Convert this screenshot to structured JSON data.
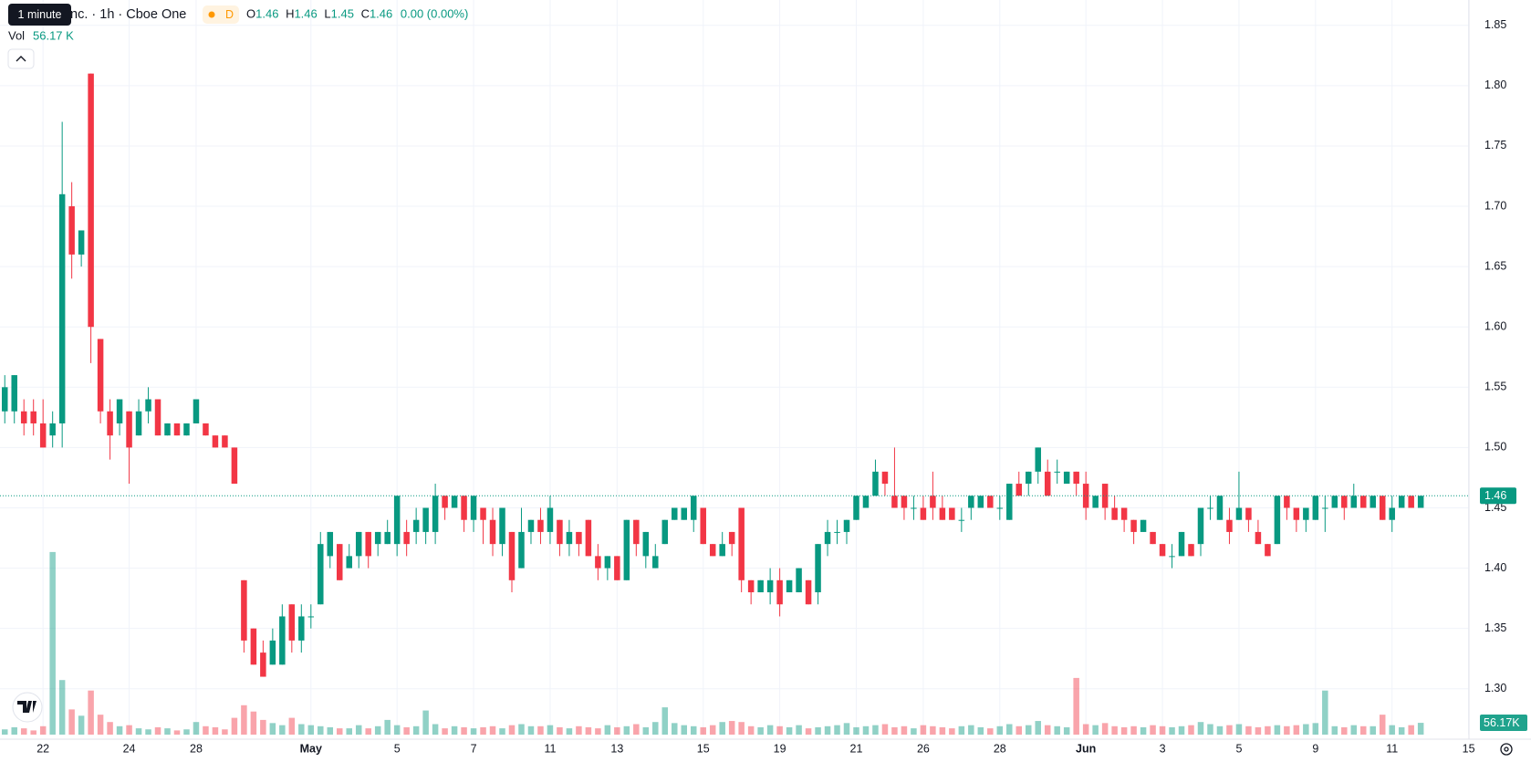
{
  "header": {
    "tooltip": "1 minute",
    "title": "Inc. · 1h · Cboe One",
    "badge": "D",
    "ohlc_labels": [
      "O",
      "H",
      "L",
      "C"
    ],
    "ohlc": [
      1.46,
      1.46,
      1.45,
      1.46
    ],
    "change": "0.00 (0.00%)",
    "volume_label": "Vol",
    "volume": "56.17 K"
  },
  "chart_data": {
    "type": "candlestick",
    "up_color": "#089981",
    "down_color": "#f23645",
    "grid": true,
    "ylim": [
      1.262,
      1.871
    ],
    "yticks": [
      {
        "value": 1.3,
        "label": "1.30"
      },
      1.35,
      {
        "value": 1.4,
        "label": "1.40"
      },
      1.45,
      {
        "value": 1.5,
        "label": "1.50"
      },
      1.55,
      {
        "value": 1.6,
        "label": "1.60"
      },
      1.65,
      {
        "value": 1.7,
        "label": "1.70"
      },
      1.75,
      {
        "value": 1.8,
        "label": "1.80"
      },
      1.85
    ],
    "y2lim": [
      0,
      3500
    ],
    "last_price": 1.46,
    "last_volume_label": "56.17K",
    "categories": [
      null,
      null,
      null,
      null,
      "22",
      null,
      null,
      null,
      null,
      null,
      null,
      null,
      null,
      "24",
      null,
      null,
      null,
      null,
      null,
      null,
      "28",
      null,
      null,
      null,
      null,
      null,
      null,
      null,
      null,
      null,
      null,
      null,
      "May",
      null,
      null,
      null,
      null,
      null,
      null,
      null,
      null,
      "5",
      null,
      null,
      null,
      null,
      null,
      null,
      null,
      "7",
      null,
      null,
      null,
      null,
      null,
      null,
      null,
      "11",
      null,
      null,
      null,
      null,
      null,
      null,
      "13",
      null,
      null,
      null,
      null,
      null,
      null,
      null,
      null,
      "15",
      null,
      null,
      null,
      null,
      null,
      null,
      null,
      "19",
      null,
      null,
      null,
      null,
      null,
      null,
      null,
      "21",
      null,
      null,
      null,
      null,
      null,
      null,
      "26",
      null,
      null,
      null,
      null,
      null,
      null,
      null,
      "28",
      null,
      null,
      null,
      null,
      null,
      null,
      null,
      null,
      "Jun",
      null,
      null,
      null,
      null,
      null,
      null,
      null,
      "3",
      null,
      null,
      null,
      null,
      null,
      null,
      null,
      "5",
      null,
      null,
      null,
      null,
      null,
      null,
      null,
      "9",
      null,
      null,
      null,
      null,
      null,
      null,
      null,
      "11",
      null,
      null,
      null,
      null,
      null,
      null,
      null,
      "15"
    ],
    "open": [
      1.53,
      1.53,
      1.53,
      1.53,
      1.52,
      1.51,
      1.52,
      1.7,
      1.66,
      1.81,
      1.59,
      1.53,
      1.52,
      1.53,
      1.51,
      1.53,
      1.54,
      1.51,
      1.52,
      1.51,
      1.52,
      1.52,
      1.51,
      1.51,
      1.5,
      1.39,
      1.35,
      1.33,
      1.32,
      1.32,
      1.37,
      1.34,
      1.36,
      1.37,
      1.41,
      1.42,
      1.4,
      1.41,
      1.43,
      1.42,
      1.42,
      1.42,
      1.43,
      1.43,
      1.43,
      1.43,
      1.46,
      1.45,
      1.46,
      1.44,
      1.45,
      1.44,
      1.42,
      1.43,
      1.4,
      1.43,
      1.44,
      1.43,
      1.44,
      1.42,
      1.43,
      1.44,
      1.41,
      1.4,
      1.41,
      1.39,
      1.44,
      1.41,
      1.4,
      1.42,
      1.44,
      1.44,
      1.44,
      1.45,
      1.42,
      1.41,
      1.43,
      1.45,
      1.39,
      1.38,
      1.38,
      1.39,
      1.38,
      1.38,
      1.39,
      1.38,
      1.42,
      1.43,
      1.43,
      1.44,
      1.45,
      1.46,
      1.48,
      1.46,
      1.46,
      1.45,
      1.45,
      1.46,
      1.45,
      1.45,
      1.44,
      1.45,
      1.45,
      1.46,
      1.45,
      1.44,
      1.47,
      1.47,
      1.48,
      1.48,
      1.48,
      1.47,
      1.48,
      1.47,
      1.45,
      1.47,
      1.45,
      1.45,
      1.44,
      1.43,
      1.43,
      1.42,
      1.41,
      1.41,
      1.42,
      1.42,
      1.45,
      1.44,
      1.44,
      1.44,
      1.45,
      1.43,
      1.42,
      1.42,
      1.46,
      1.45,
      1.44,
      1.44,
      1.45,
      1.45,
      1.46,
      1.45,
      1.46,
      1.45,
      1.46,
      1.44,
      1.45,
      1.46,
      1.45,
      null,
      null,
      null,
      null,
      null
    ],
    "high": [
      1.56,
      1.56,
      1.54,
      1.54,
      1.54,
      1.53,
      1.77,
      1.72,
      1.68,
      1.81,
      1.59,
      1.54,
      1.54,
      1.53,
      1.54,
      1.55,
      1.54,
      1.52,
      1.52,
      1.52,
      1.54,
      1.52,
      1.51,
      1.51,
      1.5,
      1.39,
      1.35,
      1.34,
      1.35,
      1.37,
      1.37,
      1.37,
      1.37,
      1.43,
      1.43,
      1.42,
      1.42,
      1.43,
      1.43,
      1.43,
      1.44,
      1.46,
      1.44,
      1.45,
      1.45,
      1.47,
      1.46,
      1.46,
      1.46,
      1.46,
      1.45,
      1.45,
      1.45,
      1.43,
      1.45,
      1.44,
      1.45,
      1.46,
      1.44,
      1.44,
      1.43,
      1.44,
      1.42,
      1.41,
      1.41,
      1.44,
      1.44,
      1.43,
      1.42,
      1.44,
      1.45,
      1.45,
      1.46,
      1.45,
      1.42,
      1.43,
      1.43,
      1.45,
      1.39,
      1.39,
      1.4,
      1.4,
      1.39,
      1.4,
      1.39,
      1.42,
      1.44,
      1.44,
      1.44,
      1.46,
      1.46,
      1.49,
      1.48,
      1.5,
      1.46,
      1.46,
      1.46,
      1.48,
      1.46,
      1.45,
      1.45,
      1.46,
      1.46,
      1.46,
      1.46,
      1.47,
      1.48,
      1.48,
      1.5,
      1.49,
      1.49,
      1.48,
      1.48,
      1.48,
      1.46,
      1.47,
      1.46,
      1.45,
      1.44,
      1.44,
      1.43,
      1.42,
      1.42,
      1.43,
      1.42,
      1.45,
      1.46,
      1.46,
      1.45,
      1.48,
      1.45,
      1.44,
      1.42,
      1.46,
      1.46,
      1.45,
      1.45,
      1.46,
      1.46,
      1.46,
      1.46,
      1.47,
      1.46,
      1.46,
      1.46,
      1.46,
      1.46,
      1.46,
      1.46,
      null,
      null,
      null,
      null,
      null
    ],
    "low": [
      1.52,
      1.52,
      1.51,
      1.51,
      1.5,
      1.5,
      1.5,
      1.64,
      1.65,
      1.57,
      1.52,
      1.49,
      1.51,
      1.47,
      1.51,
      1.52,
      1.51,
      1.51,
      1.51,
      1.51,
      1.52,
      1.51,
      1.5,
      1.5,
      1.47,
      1.33,
      1.32,
      1.31,
      1.32,
      1.32,
      1.33,
      1.33,
      1.35,
      1.37,
      1.4,
      1.39,
      1.4,
      1.4,
      1.4,
      1.41,
      1.42,
      1.41,
      1.41,
      1.42,
      1.42,
      1.42,
      1.44,
      1.45,
      1.43,
      1.43,
      1.42,
      1.41,
      1.41,
      1.38,
      1.4,
      1.42,
      1.42,
      1.42,
      1.41,
      1.41,
      1.41,
      1.41,
      1.39,
      1.39,
      1.39,
      1.39,
      1.41,
      1.4,
      1.4,
      1.42,
      1.44,
      1.44,
      1.43,
      1.42,
      1.41,
      1.41,
      1.41,
      1.38,
      1.37,
      1.38,
      1.37,
      1.36,
      1.38,
      1.38,
      1.37,
      1.37,
      1.41,
      1.42,
      1.42,
      1.44,
      1.45,
      1.46,
      1.46,
      1.45,
      1.44,
      1.44,
      1.44,
      1.44,
      1.44,
      1.44,
      1.43,
      1.44,
      1.45,
      1.45,
      1.44,
      1.44,
      1.46,
      1.46,
      1.47,
      1.46,
      1.47,
      1.47,
      1.46,
      1.44,
      1.45,
      1.44,
      1.44,
      1.43,
      1.42,
      1.43,
      1.42,
      1.41,
      1.4,
      1.41,
      1.41,
      1.41,
      1.44,
      1.44,
      1.42,
      1.44,
      1.43,
      1.42,
      1.41,
      1.42,
      1.44,
      1.43,
      1.43,
      1.44,
      1.43,
      1.45,
      1.44,
      1.45,
      1.45,
      1.45,
      1.44,
      1.43,
      1.45,
      1.45,
      1.45,
      null,
      null,
      null,
      null,
      null
    ],
    "close": [
      1.55,
      1.56,
      1.52,
      1.52,
      1.5,
      1.52,
      1.71,
      1.66,
      1.68,
      1.6,
      1.53,
      1.51,
      1.54,
      1.5,
      1.53,
      1.54,
      1.51,
      1.52,
      1.51,
      1.52,
      1.54,
      1.51,
      1.5,
      1.5,
      1.47,
      1.34,
      1.32,
      1.31,
      1.34,
      1.36,
      1.34,
      1.36,
      1.36,
      1.42,
      1.43,
      1.39,
      1.41,
      1.43,
      1.41,
      1.43,
      1.43,
      1.46,
      1.42,
      1.44,
      1.45,
      1.46,
      1.45,
      1.46,
      1.44,
      1.46,
      1.44,
      1.42,
      1.45,
      1.39,
      1.43,
      1.44,
      1.43,
      1.45,
      1.42,
      1.43,
      1.42,
      1.41,
      1.4,
      1.41,
      1.39,
      1.44,
      1.42,
      1.43,
      1.41,
      1.44,
      1.45,
      1.45,
      1.46,
      1.42,
      1.41,
      1.42,
      1.42,
      1.39,
      1.38,
      1.39,
      1.39,
      1.37,
      1.39,
      1.4,
      1.37,
      1.42,
      1.43,
      1.43,
      1.44,
      1.46,
      1.46,
      1.48,
      1.47,
      1.45,
      1.45,
      1.45,
      1.44,
      1.45,
      1.44,
      1.44,
      1.44,
      1.46,
      1.46,
      1.45,
      1.45,
      1.47,
      1.46,
      1.48,
      1.5,
      1.46,
      1.48,
      1.48,
      1.47,
      1.45,
      1.46,
      1.45,
      1.44,
      1.44,
      1.43,
      1.44,
      1.42,
      1.41,
      1.41,
      1.43,
      1.41,
      1.45,
      1.45,
      1.46,
      1.43,
      1.45,
      1.44,
      1.42,
      1.41,
      1.46,
      1.45,
      1.44,
      1.45,
      1.46,
      1.45,
      1.46,
      1.45,
      1.46,
      1.45,
      1.46,
      1.44,
      1.45,
      1.46,
      1.45,
      1.46,
      null,
      null,
      null,
      null,
      null
    ],
    "volume": [
      25,
      35,
      30,
      20,
      40,
      870,
      260,
      120,
      90,
      210,
      95,
      60,
      40,
      45,
      30,
      25,
      35,
      30,
      20,
      25,
      60,
      40,
      35,
      25,
      80,
      140,
      110,
      70,
      55,
      45,
      80,
      50,
      45,
      40,
      35,
      30,
      30,
      45,
      30,
      40,
      70,
      45,
      35,
      40,
      115,
      50,
      30,
      40,
      35,
      30,
      35,
      40,
      30,
      45,
      50,
      40,
      40,
      45,
      35,
      30,
      40,
      35,
      30,
      45,
      35,
      40,
      50,
      35,
      60,
      130,
      55,
      45,
      40,
      35,
      45,
      60,
      65,
      60,
      40,
      35,
      45,
      40,
      35,
      45,
      30,
      35,
      40,
      45,
      55,
      35,
      40,
      45,
      50,
      35,
      40,
      30,
      45,
      40,
      35,
      30,
      40,
      45,
      35,
      30,
      40,
      50,
      40,
      45,
      65,
      45,
      40,
      35,
      270,
      50,
      45,
      55,
      40,
      35,
      40,
      35,
      45,
      40,
      35,
      40,
      45,
      60,
      50,
      40,
      45,
      50,
      40,
      35,
      40,
      45,
      40,
      45,
      50,
      55,
      210,
      40,
      35,
      45,
      40,
      40,
      95,
      45,
      35,
      45,
      56.17,
      null,
      null,
      null,
      null,
      null
    ]
  }
}
